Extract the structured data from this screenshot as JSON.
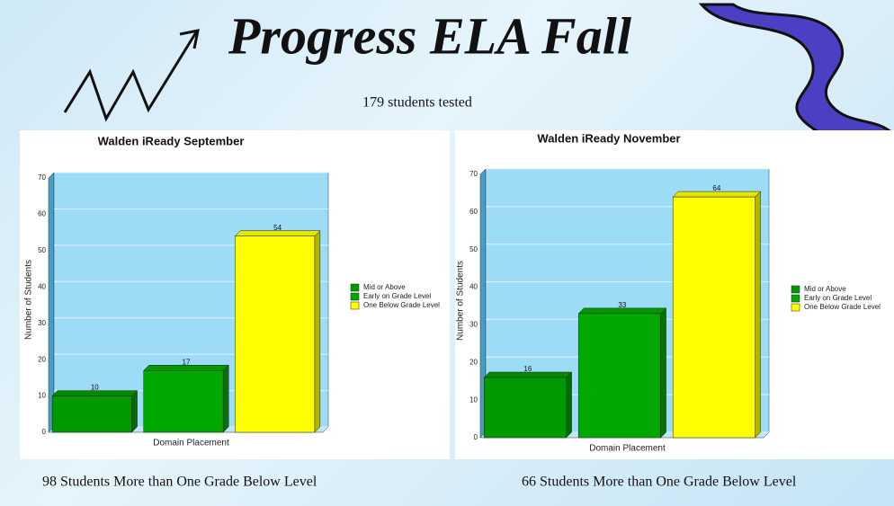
{
  "slide": {
    "title": "Progress ELA Fall",
    "subtitle": "179 students tested",
    "notes": [
      "98  Students More than One Grade Below Level",
      "66  Students More than One Grade Below Level"
    ]
  },
  "chart_data": [
    {
      "type": "bar",
      "title": "Walden iReady September",
      "xlabel": "Domain Placement",
      "ylabel": "Number of Students",
      "categories": [
        "Mid or Above",
        "Early on Grade Level",
        "One Below Grade Level"
      ],
      "values": [
        10,
        17,
        54
      ],
      "colors": [
        "#009a00",
        "#00a800",
        "#ffff00"
      ],
      "ylim": [
        0,
        70
      ],
      "yticks": [
        0,
        10,
        20,
        30,
        40,
        50,
        60,
        70
      ],
      "grid": true
    },
    {
      "type": "bar",
      "title": "Walden iReady November",
      "xlabel": "Domain Placement",
      "ylabel": "Number of Students",
      "categories": [
        "Mid or Above",
        "Early on Grade Level",
        "One Below Grade Level"
      ],
      "values": [
        16,
        33,
        64
      ],
      "colors": [
        "#009a00",
        "#00a800",
        "#ffff00"
      ],
      "ylim": [
        0,
        70
      ],
      "yticks": [
        0,
        10,
        20,
        30,
        40,
        50,
        60,
        70
      ],
      "grid": true
    }
  ]
}
